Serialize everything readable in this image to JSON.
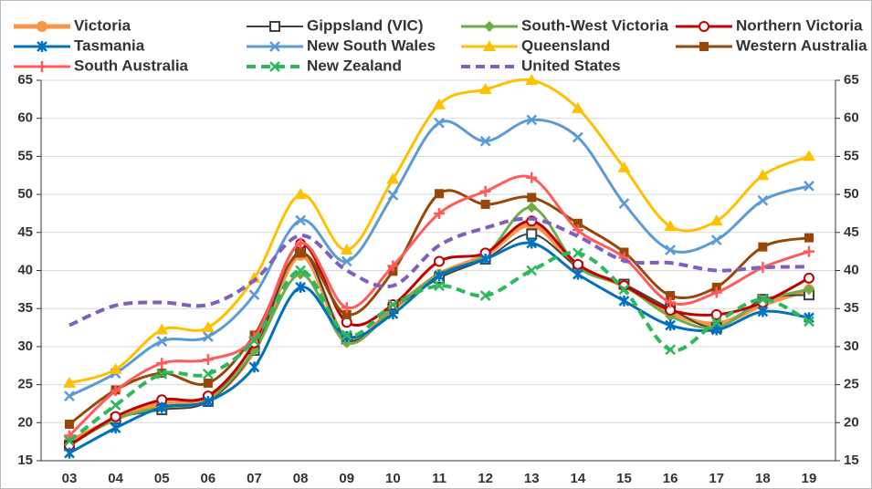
{
  "chart_data": {
    "type": "line",
    "categories": [
      "03",
      "04",
      "05",
      "06",
      "07",
      "08",
      "09",
      "10",
      "11",
      "12",
      "13",
      "14",
      "15",
      "16",
      "17",
      "18",
      "19"
    ],
    "ylim": [
      15,
      65
    ],
    "yticks": [
      15,
      20,
      25,
      30,
      35,
      40,
      45,
      50,
      55,
      60,
      65
    ],
    "grid": true,
    "series": [
      {
        "name": "Victoria",
        "color": "#f79646",
        "marker": "circle-filled",
        "width": 5,
        "values": [
          17.5,
          20.5,
          22.5,
          23,
          29.5,
          42,
          31,
          35,
          39.5,
          42,
          46,
          40.5,
          38,
          34.5,
          33,
          35.5,
          37.5
        ]
      },
      {
        "name": "Gippsland (VIC)",
        "color": "#404040",
        "marker": "square-open",
        "width": 2,
        "values": [
          17,
          20.5,
          21.7,
          22.8,
          29.5,
          42.5,
          31,
          35,
          39,
          41.5,
          44.8,
          40.5,
          38.2,
          35,
          32.5,
          36.2,
          36.8
        ]
      },
      {
        "name": "South-West Victoria",
        "color": "#70ad47",
        "marker": "diamond",
        "width": 3,
        "values": [
          17,
          20.5,
          22,
          23,
          29.5,
          39.5,
          30.5,
          35,
          39.5,
          42,
          48.3,
          40.5,
          38,
          34,
          32.5,
          36,
          37.5
        ]
      },
      {
        "name": "Northern Victoria",
        "color": "#c00000",
        "marker": "circle-open",
        "width": 3,
        "values": [
          17,
          20.8,
          23,
          23.5,
          30.5,
          43.5,
          33.2,
          35.5,
          41.2,
          42.3,
          46.5,
          40.8,
          38,
          34.8,
          34.2,
          35.8,
          39
        ]
      },
      {
        "name": "Tasmania",
        "color": "#0070c0",
        "marker": "star",
        "width": 3,
        "values": [
          16,
          19.3,
          22,
          22.8,
          27.3,
          37.8,
          31.3,
          34.3,
          39.3,
          41.5,
          43.6,
          39.5,
          36,
          32.8,
          32.2,
          34.6,
          33.8
        ]
      },
      {
        "name": "New South Wales",
        "color": "#5b9bd5",
        "marker": "x",
        "width": 3,
        "values": [
          23.5,
          26.5,
          30.7,
          31.3,
          36.8,
          46.6,
          41.2,
          49.9,
          59.4,
          57,
          59.8,
          57.5,
          48.8,
          42.7,
          44,
          49.2,
          51.1
        ]
      },
      {
        "name": "Queensland",
        "color": "#ffc000",
        "marker": "triangle",
        "width": 3,
        "values": [
          25.2,
          27,
          32.2,
          32.5,
          39,
          50,
          42.7,
          52,
          61.8,
          63.8,
          65,
          61.3,
          53.5,
          45.8,
          46.5,
          52.5,
          55
        ]
      },
      {
        "name": "Western Australia",
        "color": "#974706",
        "marker": "square-filled",
        "width": 3,
        "values": [
          19.8,
          24.3,
          26.5,
          25.2,
          31.5,
          42.3,
          34.2,
          39.9,
          50.1,
          48.7,
          49.6,
          46.2,
          42.4,
          36.7,
          37.8,
          43.1,
          44.3
        ]
      },
      {
        "name": "South Australia",
        "color": "#ff5b5b",
        "marker": "plus",
        "width": 3,
        "values": [
          18.3,
          24.2,
          27.8,
          28.3,
          31.2,
          43.6,
          35.1,
          40.6,
          47.5,
          50.4,
          52.2,
          45.3,
          41.7,
          35.8,
          37.1,
          40.4,
          42.5
        ]
      },
      {
        "name": "New Zealand",
        "color": "#2eb85c",
        "marker": "x",
        "dash": true,
        "width": 4,
        "values": [
          17.6,
          22.3,
          26.4,
          26.4,
          30.8,
          40,
          31.5,
          35.5,
          38,
          36.7,
          40,
          42.3,
          37.5,
          29.6,
          33.2,
          36.2,
          33.3
        ]
      },
      {
        "name": "United States",
        "color": "#7f5fbf",
        "marker": "none",
        "dash": true,
        "width": 4,
        "values": [
          32.8,
          35.4,
          35.8,
          35.5,
          38.7,
          44.6,
          40,
          38,
          43.3,
          45.6,
          46.8,
          44.5,
          41.3,
          41,
          40,
          40.4,
          40.5
        ]
      }
    ]
  }
}
